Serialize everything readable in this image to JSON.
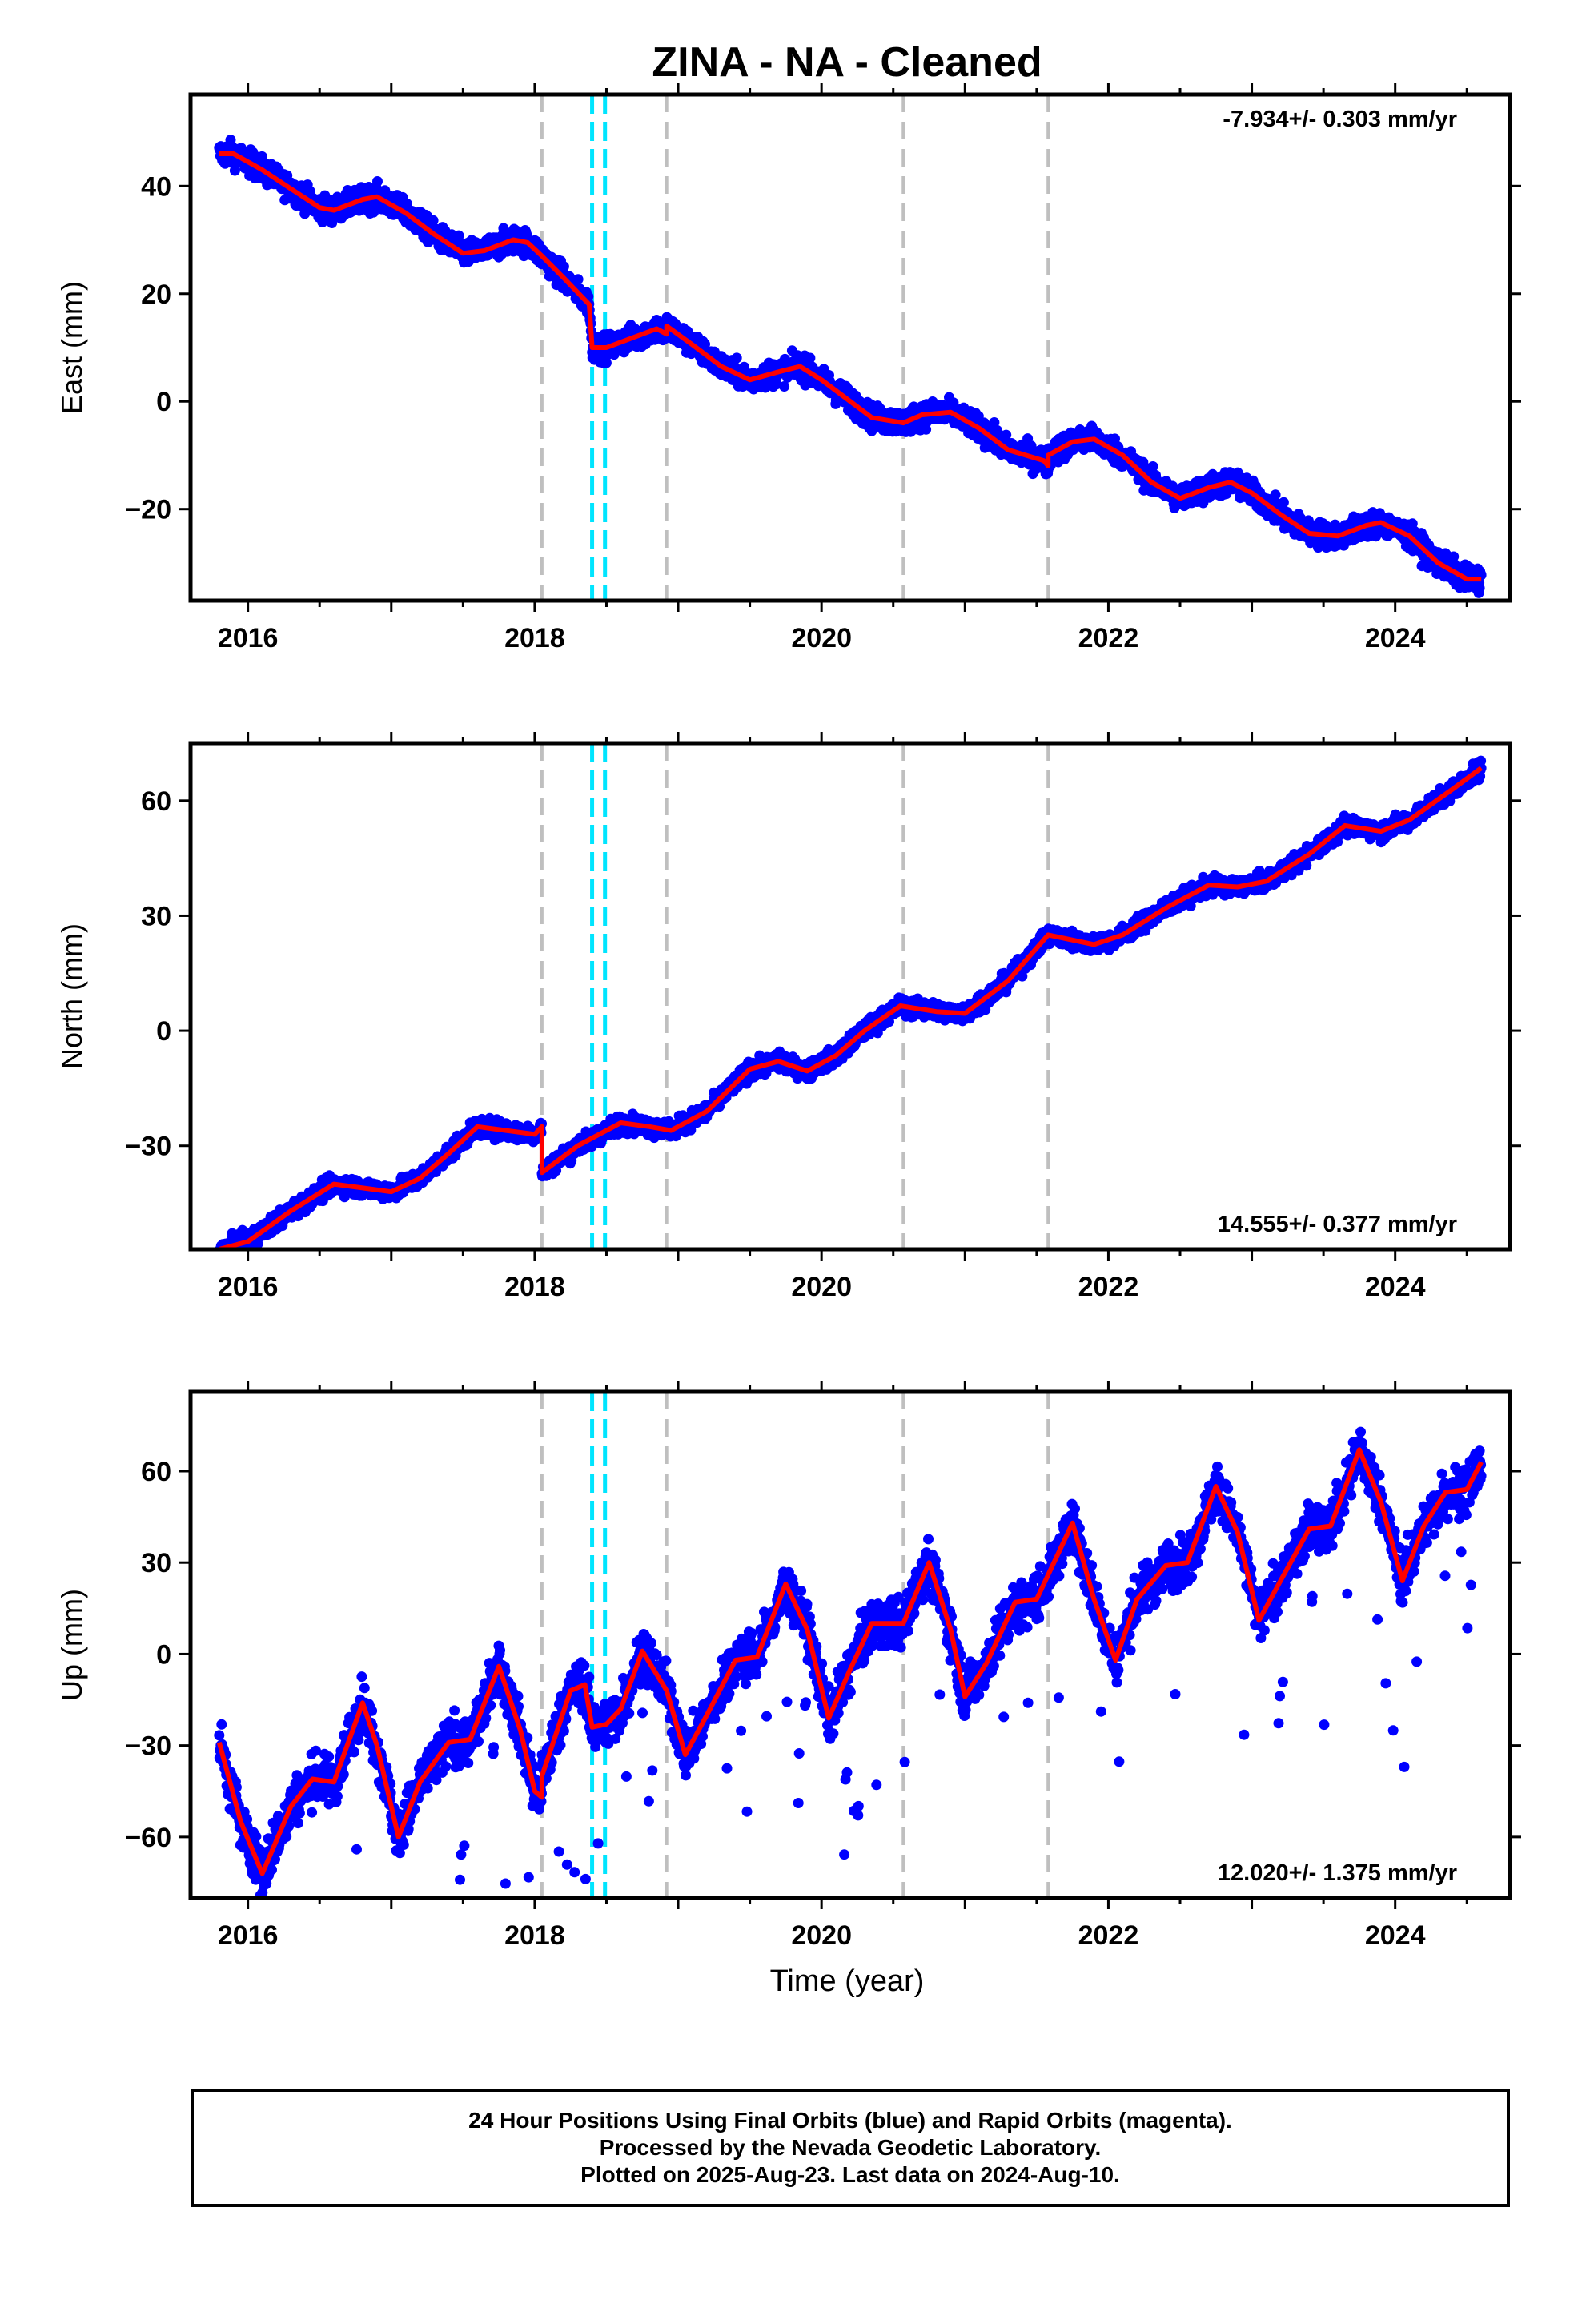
{
  "title": "ZINA  - NA - Cleaned",
  "xlabel": "Time (year)",
  "footer": {
    "line1": "24 Hour Positions Using Final Orbits (blue) and Rapid Orbits (magenta).",
    "line2": "Processed by the Nevada Geodetic Laboratory.",
    "line3": "Plotted on 2025-Aug-23. Last data on 2024-Aug-10."
  },
  "colors": {
    "data": "#0000ff",
    "model": "#ff0000",
    "equipment_change": "#bfbfbf",
    "earthquake": "#00e5ff"
  },
  "chart_data": [
    {
      "type": "scatter",
      "component": "East",
      "ylabel": "East (mm)",
      "rate_label": "-7.934+/- 0.303 mm/yr",
      "rate_position": "top-right",
      "xlim": [
        2015.6,
        2024.8
      ],
      "ylim": [
        -37,
        57
      ],
      "x_ticks": [
        2016,
        2018,
        2020,
        2022,
        2024
      ],
      "y_ticks": [
        -20,
        0,
        20,
        40
      ],
      "gray_dashed_lines": [
        2018.05,
        2018.92,
        2020.57,
        2021.58
      ],
      "cyan_dashed_lines": [
        2018.4,
        2018.49
      ],
      "model_knots": [
        [
          2015.8,
          46
        ],
        [
          2015.9,
          46
        ],
        [
          2016.1,
          43
        ],
        [
          2016.3,
          39.5
        ],
        [
          2016.5,
          36
        ],
        [
          2016.6,
          35.5
        ],
        [
          2016.8,
          37.5
        ],
        [
          2016.9,
          38
        ],
        [
          2017.1,
          35
        ],
        [
          2017.3,
          31
        ],
        [
          2017.5,
          27.5
        ],
        [
          2017.65,
          28
        ],
        [
          2017.85,
          30
        ],
        [
          2017.95,
          29.5
        ],
        [
          2018.05,
          27
        ],
        [
          2018.2,
          23
        ],
        [
          2018.38,
          18
        ],
        [
          2018.4,
          10
        ],
        [
          2018.5,
          10
        ],
        [
          2018.7,
          12
        ],
        [
          2018.85,
          13.5
        ],
        [
          2018.92,
          12.5
        ],
        [
          2018.92,
          14
        ],
        [
          2019.1,
          10.5
        ],
        [
          2019.3,
          6.5
        ],
        [
          2019.5,
          4
        ],
        [
          2019.7,
          5.5
        ],
        [
          2019.85,
          6.5
        ],
        [
          2020.0,
          4
        ],
        [
          2020.2,
          0
        ],
        [
          2020.35,
          -3
        ],
        [
          2020.57,
          -4
        ],
        [
          2020.7,
          -2.5
        ],
        [
          2020.9,
          -2
        ],
        [
          2021.1,
          -5
        ],
        [
          2021.3,
          -9
        ],
        [
          2021.55,
          -11
        ],
        [
          2021.58,
          -12
        ],
        [
          2021.58,
          -10
        ],
        [
          2021.75,
          -7.5
        ],
        [
          2021.9,
          -7
        ],
        [
          2022.1,
          -10
        ],
        [
          2022.3,
          -15
        ],
        [
          2022.5,
          -18
        ],
        [
          2022.7,
          -16
        ],
        [
          2022.85,
          -15
        ],
        [
          2023.0,
          -17
        ],
        [
          2023.2,
          -21
        ],
        [
          2023.4,
          -24.5
        ],
        [
          2023.6,
          -25
        ],
        [
          2023.8,
          -23
        ],
        [
          2023.9,
          -22.5
        ],
        [
          2024.1,
          -25
        ],
        [
          2024.3,
          -30
        ],
        [
          2024.5,
          -33
        ],
        [
          2024.6,
          -33
        ]
      ],
      "series": [
        {
          "name": "",
          "pattern": "model_plus_seasonal_noise",
          "noise_mm": 1.6
        }
      ]
    },
    {
      "type": "scatter",
      "component": "North",
      "ylabel": "North (mm)",
      "rate_label": "14.555+/- 0.377 mm/yr",
      "rate_position": "bottom-right",
      "xlim": [
        2015.6,
        2024.8
      ],
      "ylim": [
        -57,
        75
      ],
      "x_ticks": [
        2016,
        2018,
        2020,
        2022,
        2024
      ],
      "y_ticks": [
        -30,
        0,
        30,
        60
      ],
      "gray_dashed_lines": [
        2018.05,
        2018.92,
        2020.57,
        2021.58
      ],
      "cyan_dashed_lines": [
        2018.4,
        2018.49
      ],
      "model_knots": [
        [
          2015.8,
          -57
        ],
        [
          2016.0,
          -55
        ],
        [
          2016.3,
          -47
        ],
        [
          2016.6,
          -40
        ],
        [
          2016.8,
          -41
        ],
        [
          2017.0,
          -42
        ],
        [
          2017.2,
          -38.5
        ],
        [
          2017.4,
          -32
        ],
        [
          2017.6,
          -25
        ],
        [
          2017.8,
          -26
        ],
        [
          2018.0,
          -27
        ],
        [
          2018.05,
          -25
        ],
        [
          2018.05,
          -37
        ],
        [
          2018.3,
          -30
        ],
        [
          2018.6,
          -24
        ],
        [
          2018.8,
          -25
        ],
        [
          2018.95,
          -26
        ],
        [
          2019.2,
          -21
        ],
        [
          2019.5,
          -10
        ],
        [
          2019.7,
          -8
        ],
        [
          2019.9,
          -10.5
        ],
        [
          2020.1,
          -6.5
        ],
        [
          2020.3,
          0
        ],
        [
          2020.55,
          6.5
        ],
        [
          2020.8,
          5
        ],
        [
          2021.0,
          4.5
        ],
        [
          2021.3,
          13
        ],
        [
          2021.58,
          25
        ],
        [
          2021.9,
          22.5
        ],
        [
          2022.1,
          25
        ],
        [
          2022.4,
          32
        ],
        [
          2022.7,
          38
        ],
        [
          2022.9,
          37.5
        ],
        [
          2023.1,
          39
        ],
        [
          2023.4,
          46
        ],
        [
          2023.65,
          53.5
        ],
        [
          2023.9,
          52
        ],
        [
          2024.1,
          55
        ],
        [
          2024.4,
          63
        ],
        [
          2024.6,
          68.5
        ]
      ],
      "series": [
        {
          "name": "",
          "pattern": "model_plus_seasonal_noise",
          "noise_mm": 1.6
        }
      ]
    },
    {
      "type": "scatter",
      "component": "Up",
      "ylabel": "Up (mm)",
      "rate_label": "12.020+/- 1.375 mm/yr",
      "rate_position": "bottom-right",
      "xlim": [
        2015.6,
        2024.8
      ],
      "ylim": [
        -80,
        86
      ],
      "x_ticks": [
        2016,
        2018,
        2020,
        2022,
        2024
      ],
      "y_ticks": [
        -60,
        -30,
        0,
        30,
        60
      ],
      "gray_dashed_lines": [
        2018.05,
        2018.92,
        2020.57,
        2021.58
      ],
      "cyan_dashed_lines": [
        2018.4,
        2018.49
      ],
      "model_knots": [
        [
          2015.8,
          -29
        ],
        [
          2015.95,
          -55
        ],
        [
          2016.1,
          -72
        ],
        [
          2016.3,
          -50
        ],
        [
          2016.45,
          -41
        ],
        [
          2016.6,
          -42
        ],
        [
          2016.8,
          -16
        ],
        [
          2016.9,
          -30
        ],
        [
          2017.05,
          -60
        ],
        [
          2017.2,
          -42
        ],
        [
          2017.4,
          -29
        ],
        [
          2017.55,
          -28
        ],
        [
          2017.75,
          -4
        ],
        [
          2017.9,
          -25
        ],
        [
          2018.0,
          -45
        ],
        [
          2018.05,
          -47
        ],
        [
          2018.05,
          -40
        ],
        [
          2018.25,
          -12
        ],
        [
          2018.35,
          -10
        ],
        [
          2018.4,
          -24
        ],
        [
          2018.5,
          -23
        ],
        [
          2018.6,
          -18
        ],
        [
          2018.75,
          1
        ],
        [
          2018.92,
          -12
        ],
        [
          2019.05,
          -33
        ],
        [
          2019.2,
          -20
        ],
        [
          2019.4,
          -2
        ],
        [
          2019.55,
          -1
        ],
        [
          2019.75,
          23
        ],
        [
          2019.9,
          8
        ],
        [
          2020.05,
          -21
        ],
        [
          2020.2,
          -5
        ],
        [
          2020.35,
          10
        ],
        [
          2020.57,
          10
        ],
        [
          2020.75,
          30
        ],
        [
          2020.9,
          8
        ],
        [
          2021.0,
          -14
        ],
        [
          2021.15,
          -3
        ],
        [
          2021.35,
          17
        ],
        [
          2021.5,
          18
        ],
        [
          2021.75,
          43
        ],
        [
          2021.9,
          18
        ],
        [
          2022.05,
          -2
        ],
        [
          2022.2,
          18
        ],
        [
          2022.4,
          29
        ],
        [
          2022.55,
          30
        ],
        [
          2022.75,
          55
        ],
        [
          2022.9,
          40
        ],
        [
          2023.05,
          11
        ],
        [
          2023.2,
          24
        ],
        [
          2023.4,
          41
        ],
        [
          2023.55,
          42
        ],
        [
          2023.75,
          67
        ],
        [
          2023.9,
          50
        ],
        [
          2024.05,
          24
        ],
        [
          2024.2,
          42
        ],
        [
          2024.35,
          53
        ],
        [
          2024.5,
          54
        ],
        [
          2024.6,
          63
        ]
      ],
      "series": [
        {
          "name": "",
          "pattern": "model_plus_seasonal_noise",
          "noise_mm": 5.5
        }
      ]
    }
  ]
}
